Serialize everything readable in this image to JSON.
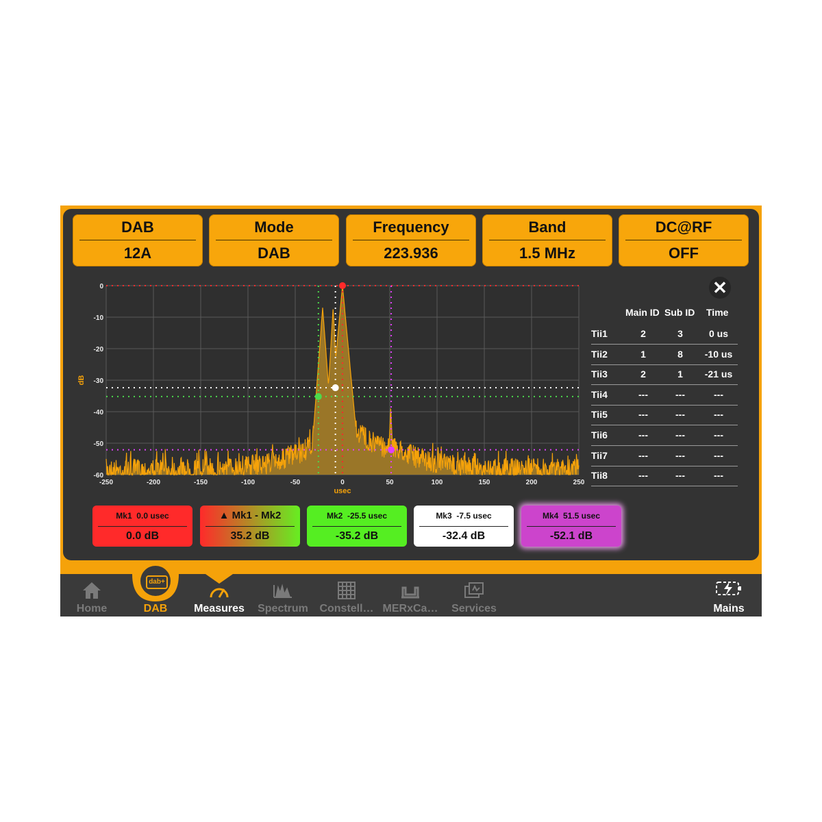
{
  "header": [
    {
      "title": "DAB",
      "value": "12A"
    },
    {
      "title": "Mode",
      "value": "DAB"
    },
    {
      "title": "Frequency",
      "value": "223.936"
    },
    {
      "title": "Band",
      "value": "1.5 MHz"
    },
    {
      "title": "DC@RF",
      "value": "OFF"
    }
  ],
  "chart_data": {
    "type": "line",
    "xlabel": "usec",
    "ylabel": "dB",
    "xlim": [
      -250,
      250
    ],
    "ylim": [
      -60,
      0
    ],
    "x_ticks": [
      "-250",
      "-200",
      "-150",
      "-100",
      "-50",
      "0",
      "50",
      "100",
      "150",
      "200",
      "250"
    ],
    "y_ticks": [
      "0",
      "-10",
      "-20",
      "-30",
      "-40",
      "-50",
      "-60"
    ],
    "grid": true,
    "fill_color": "#9a7628",
    "line_color": "#f5a20a",
    "series": [
      {
        "values": []
      }
    ],
    "markers": [
      {
        "x": 0.0,
        "y": 0.0,
        "color": "#ff2a2a"
      },
      {
        "x": -25.5,
        "y": -35.2,
        "color": "#4cd94c"
      },
      {
        "x": -7.5,
        "y": -32.4,
        "color": "#ffffff"
      },
      {
        "x": 51.5,
        "y": -52.1,
        "color": "#e040fb"
      }
    ]
  },
  "close_label": "✕",
  "tii": {
    "headers": [
      "Main ID",
      "Sub ID",
      "Time"
    ],
    "rows": [
      {
        "name": "Tii1",
        "main": "2",
        "sub": "3",
        "time": "0 us"
      },
      {
        "name": "Tii2",
        "main": "1",
        "sub": "8",
        "time": "-10 us"
      },
      {
        "name": "Tii3",
        "main": "2",
        "sub": "1",
        "time": "-21 us"
      },
      {
        "name": "Tii4",
        "main": "---",
        "sub": "---",
        "time": "---"
      },
      {
        "name": "Tii5",
        "main": "---",
        "sub": "---",
        "time": "---"
      },
      {
        "name": "Tii6",
        "main": "---",
        "sub": "---",
        "time": "---"
      },
      {
        "name": "Tii7",
        "main": "---",
        "sub": "---",
        "time": "---"
      },
      {
        "name": "Tii8",
        "main": "---",
        "sub": "---",
        "time": "---"
      }
    ]
  },
  "markers_panel": [
    {
      "label": "Mk1  0.0 usec",
      "value": "0.0 dB",
      "color": "#ff2a2a"
    },
    {
      "label": "▲ Mk1 - Mk2",
      "value": "35.2 dB",
      "color": "gradient-red-green"
    },
    {
      "label": "Mk2  -25.5 usec",
      "value": "-35.2 dB",
      "color": "#55ee22"
    },
    {
      "label": "Mk3  -7.5 usec",
      "value": "-32.4 dB",
      "color": "#ffffff"
    },
    {
      "label": "Mk4  51.5 usec",
      "value": "-52.1 dB",
      "color": "#cc44cc"
    }
  ],
  "nav": [
    {
      "label": "Home",
      "icon": "home-icon",
      "active": false
    },
    {
      "label": "DAB",
      "icon": "dab-plus-icon",
      "active": true
    },
    {
      "label": "Measures",
      "icon": "gauge-icon",
      "active": true
    },
    {
      "label": "Spectrum",
      "icon": "spectrum-icon",
      "active": false
    },
    {
      "label": "Constell…",
      "icon": "constellation-icon",
      "active": false
    },
    {
      "label": "MERxCa…",
      "icon": "mer-carrier-icon",
      "active": false
    },
    {
      "label": "Services",
      "icon": "services-icon",
      "active": false
    }
  ],
  "power": {
    "label": "Mains",
    "icon": "battery-charging-icon"
  },
  "dab_logo_text": "dab+"
}
